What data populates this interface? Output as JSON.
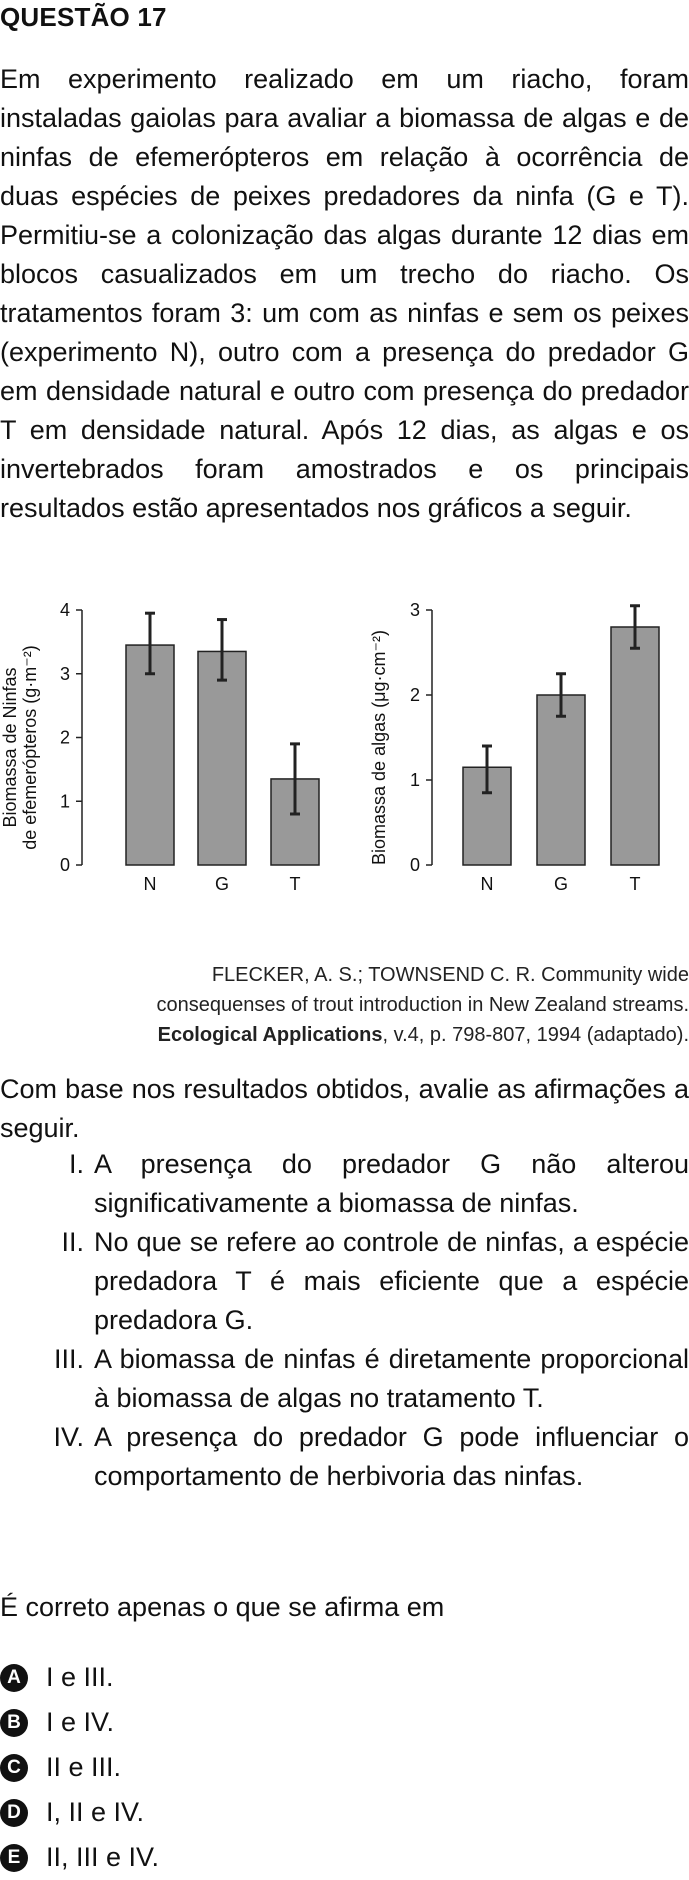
{
  "question": {
    "title": "QUESTÃO 17",
    "intro": "Em experimento realizado em um riacho, foram instaladas gaiolas para avaliar a biomassa de algas e de ninfas de efemerópteros em relação à ocorrência de duas espécies de peixes predadores da ninfa (G e T). Permitiu-se a colonização das algas durante 12 dias em blocos casualizados em um trecho do riacho. Os tratamentos foram 3: um com as ninfas e sem os peixes (experimento N), outro com a presença do predador G em densidade natural e outro com presença do predador T em densidade natural. Após 12 dias, as algas e os invertebrados foram amostrados e os principais resultados estão apresentados nos gráficos a seguir.",
    "source_line1": "FLECKER, A. S.; TOWNSEND C. R. Community wide",
    "source_line2": "consequenses of trout introduction in New Zealand streams.",
    "source_journal": "Ecological Applications",
    "source_rest": ", v.4, p. 798-807, 1994 (adaptado).",
    "prompt": "Com base nos resultados obtidos, avalie as afirmações a seguir.",
    "statements": [
      {
        "num": "I.",
        "text": "A presença do predador G não alterou significativamente a biomassa de ninfas."
      },
      {
        "num": "II.",
        "text": "No que se refere ao controle de ninfas, a espécie predadora T é mais eficiente que a espécie predadora G."
      },
      {
        "num": "III.",
        "text": "A biomassa de ninfas é diretamente proporcional à biomassa de algas no tratamento T."
      },
      {
        "num": "IV.",
        "text": "A presença do predador G pode influenciar o comportamento de herbivoria das ninfas."
      }
    ],
    "correct_prompt": "É correto apenas o que se afirma em",
    "options": [
      {
        "letter": "A",
        "text": "I e III."
      },
      {
        "letter": "B",
        "text": "I e IV."
      },
      {
        "letter": "C",
        "text": "II e III."
      },
      {
        "letter": "D",
        "text": "I, II e IV."
      },
      {
        "letter": "E",
        "text": "II, III e IV."
      }
    ]
  },
  "colors": {
    "bar_fill": "#999999",
    "bar_stroke": "#222222",
    "text": "#111111"
  },
  "chart_data": [
    {
      "type": "bar",
      "categories": [
        "N",
        "G",
        "T"
      ],
      "values": [
        3.45,
        3.35,
        1.35
      ],
      "error_low": [
        3.0,
        2.9,
        0.8
      ],
      "error_high": [
        3.95,
        3.85,
        1.9
      ],
      "ylabel_line1": "Biomassa de Ninfas",
      "ylabel_line2": "de efemerópteros (g·m⁻²)",
      "yticks": [
        "0",
        "1",
        "2",
        "3",
        "4"
      ],
      "ylim": [
        0,
        4
      ]
    },
    {
      "type": "bar",
      "categories": [
        "N",
        "G",
        "T"
      ],
      "values": [
        1.15,
        2.0,
        2.8
      ],
      "error_low": [
        0.85,
        1.75,
        2.55
      ],
      "error_high": [
        1.4,
        2.25,
        3.05
      ],
      "ylabel_line1": "Biomassa de algas (μg·cm⁻²)",
      "yticks": [
        "0",
        "1",
        "2",
        "3"
      ],
      "ylim": [
        0,
        3
      ]
    }
  ]
}
